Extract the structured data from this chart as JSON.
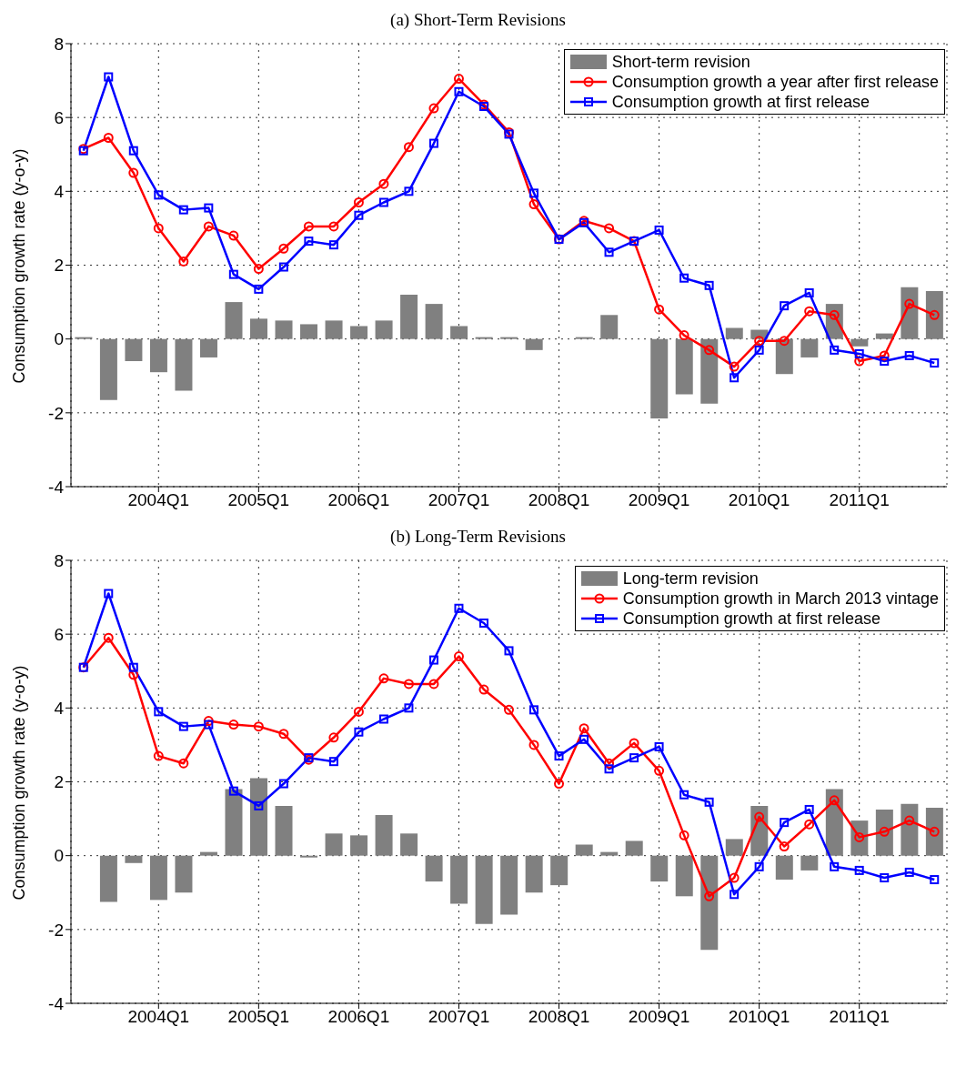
{
  "chart_data": [
    {
      "type": "bar",
      "title": "(a) Short-Term Revisions",
      "ylabel": "Consumption growth rate (y-o-y)",
      "categories": [
        null,
        null,
        null,
        "2004Q1",
        null,
        null,
        null,
        "2005Q1",
        null,
        null,
        null,
        "2006Q1",
        null,
        null,
        null,
        "2007Q1",
        null,
        null,
        null,
        "2008Q1",
        null,
        null,
        null,
        "2009Q1",
        null,
        null,
        null,
        "2010Q1",
        null,
        null,
        null,
        "2011Q1",
        null,
        null,
        null
      ],
      "ylim": [
        -4,
        8
      ],
      "yticks": [
        -4,
        -2,
        0,
        2,
        4,
        6,
        8
      ],
      "grid": true,
      "legend": "top right",
      "series": [
        {
          "name": "Short-term revision",
          "color": "#808080",
          "values": [
            0.05,
            -1.65,
            -0.6,
            -0.9,
            -1.4,
            -0.5,
            1.0,
            0.55,
            0.5,
            0.4,
            0.5,
            0.35,
            0.5,
            1.2,
            0.95,
            0.35,
            0.05,
            0.05,
            -0.3,
            0.0,
            0.05,
            0.65,
            0.0,
            -2.15,
            -1.5,
            -1.75,
            0.3,
            0.25,
            -0.95,
            -0.5,
            0.95,
            -0.2,
            0.15,
            1.4,
            1.3
          ]
        },
        {
          "type": "line",
          "name": "Consumption growth a year after first release",
          "color": "#ff0000",
          "marker": "circle",
          "values": [
            5.15,
            5.45,
            4.5,
            3.0,
            2.1,
            3.05,
            2.8,
            1.9,
            2.45,
            3.05,
            3.05,
            3.7,
            4.2,
            5.2,
            6.25,
            7.05,
            6.35,
            5.6,
            3.65,
            2.7,
            3.2,
            3.0,
            2.65,
            0.8,
            0.1,
            -0.3,
            -0.75,
            -0.05,
            -0.05,
            0.75,
            0.65,
            -0.6,
            -0.45,
            0.95,
            0.65
          ]
        },
        {
          "type": "line",
          "name": "Consumption growth at first release",
          "color": "#0000ff",
          "marker": "square",
          "values": [
            5.1,
            7.1,
            5.1,
            3.9,
            3.5,
            3.55,
            1.75,
            1.35,
            1.95,
            2.65,
            2.55,
            3.35,
            3.7,
            4.0,
            5.3,
            6.7,
            6.3,
            5.55,
            3.95,
            2.7,
            3.15,
            2.35,
            2.65,
            2.95,
            1.65,
            1.45,
            -1.05,
            -0.3,
            0.9,
            1.25,
            -0.3,
            -0.4,
            -0.6,
            -0.45,
            -0.65
          ]
        }
      ]
    },
    {
      "type": "bar",
      "title": "(b) Long-Term Revisions",
      "ylabel": "Consumption growth rate (y-o-y)",
      "categories": [
        null,
        null,
        null,
        "2004Q1",
        null,
        null,
        null,
        "2005Q1",
        null,
        null,
        null,
        "2006Q1",
        null,
        null,
        null,
        "2007Q1",
        null,
        null,
        null,
        "2008Q1",
        null,
        null,
        null,
        "2009Q1",
        null,
        null,
        null,
        "2010Q1",
        null,
        null,
        null,
        "2011Q1",
        null,
        null,
        null
      ],
      "ylim": [
        -4,
        8
      ],
      "yticks": [
        -4,
        -2,
        0,
        2,
        4,
        6,
        8
      ],
      "grid": true,
      "legend": "top right",
      "series": [
        {
          "name": "Long-term revision",
          "color": "#808080",
          "values": [
            0.0,
            -1.25,
            -0.2,
            -1.2,
            -1.0,
            0.1,
            1.8,
            2.1,
            1.35,
            -0.05,
            0.6,
            0.55,
            1.1,
            0.6,
            -0.7,
            -1.3,
            -1.85,
            -1.6,
            -1.0,
            -0.8,
            0.3,
            0.1,
            0.4,
            -0.7,
            -1.1,
            -2.55,
            0.45,
            1.35,
            -0.65,
            -0.4,
            1.8,
            0.95,
            1.25,
            1.4,
            1.3
          ]
        },
        {
          "type": "line",
          "name": "Consumption growth in March 2013 vintage",
          "color": "#ff0000",
          "marker": "circle",
          "values": [
            5.1,
            5.9,
            4.9,
            2.7,
            2.5,
            3.65,
            3.55,
            3.5,
            3.3,
            2.6,
            3.2,
            3.9,
            4.8,
            4.65,
            4.65,
            5.4,
            4.5,
            3.95,
            3.0,
            1.95,
            3.45,
            2.5,
            3.05,
            2.3,
            0.55,
            -1.1,
            -0.6,
            1.05,
            0.25,
            0.85,
            1.5,
            0.5,
            0.65,
            0.95,
            0.65
          ]
        },
        {
          "type": "line",
          "name": "Consumption growth at first release",
          "color": "#0000ff",
          "marker": "square",
          "values": [
            5.1,
            7.1,
            5.1,
            3.9,
            3.5,
            3.55,
            1.75,
            1.35,
            1.95,
            2.65,
            2.55,
            3.35,
            3.7,
            4.0,
            5.3,
            6.7,
            6.3,
            5.55,
            3.95,
            2.7,
            3.15,
            2.35,
            2.65,
            2.95,
            1.65,
            1.45,
            -1.05,
            -0.3,
            0.9,
            1.25,
            -0.3,
            -0.4,
            -0.6,
            -0.45,
            -0.65
          ]
        }
      ]
    }
  ]
}
